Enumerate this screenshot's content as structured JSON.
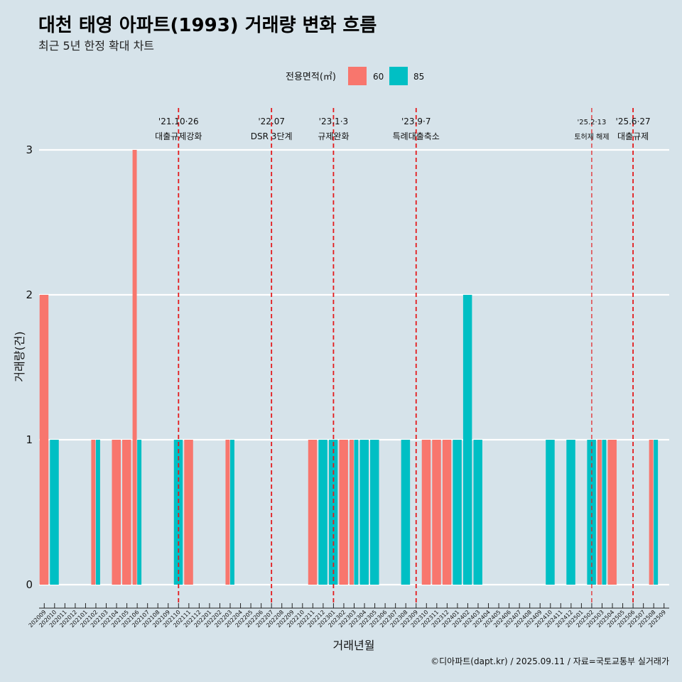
{
  "chart_data": {
    "type": "bar",
    "title": "대천 태영 아파트(1993) 거래량 변화 흐름",
    "subtitle": "최근 5년 한정 확대 차트",
    "xlabel": "거래년월",
    "ylabel": "거래량(건)",
    "ylim": [
      0,
      3
    ],
    "y_ticks": [
      0,
      1,
      2,
      3
    ],
    "legend": {
      "title": "전용면적(㎡)",
      "placement": "top",
      "items": [
        {
          "label": "60",
          "color": "#f8766d"
        },
        {
          "label": "85",
          "color": "#00bfc4"
        }
      ]
    },
    "categories": [
      "202009",
      "202010",
      "202011",
      "202012",
      "202101",
      "202102",
      "202103",
      "202104",
      "202105",
      "202106",
      "202107",
      "202108",
      "202109",
      "202110",
      "202111",
      "202112",
      "202201",
      "202202",
      "202203",
      "202204",
      "202205",
      "202206",
      "202207",
      "202208",
      "202209",
      "202210",
      "202211",
      "202212",
      "202301",
      "202302",
      "202303",
      "202304",
      "202305",
      "202306",
      "202307",
      "202308",
      "202309",
      "202310",
      "202311",
      "202312",
      "202401",
      "202402",
      "202403",
      "202404",
      "202405",
      "202406",
      "202407",
      "202408",
      "202409",
      "202410",
      "202411",
      "202412",
      "202501",
      "202502",
      "202503",
      "202504",
      "202505",
      "202506",
      "202507",
      "202508",
      "202509"
    ],
    "series": [
      {
        "name": "60",
        "color": "#f8766d",
        "points": [
          [
            "202009",
            2
          ],
          [
            "202102",
            1
          ],
          [
            "202104",
            1
          ],
          [
            "202105",
            1
          ],
          [
            "202106",
            3
          ],
          [
            "202111",
            1
          ],
          [
            "202203",
            1
          ],
          [
            "202211",
            1
          ],
          [
            "202302",
            1
          ],
          [
            "202303",
            1
          ],
          [
            "202310",
            1
          ],
          [
            "202311",
            1
          ],
          [
            "202312",
            1
          ],
          [
            "202503",
            1
          ],
          [
            "202504",
            1
          ],
          [
            "202508",
            1
          ]
        ]
      },
      {
        "name": "85",
        "color": "#00bfc4",
        "points": [
          [
            "202010",
            1
          ],
          [
            "202102",
            1
          ],
          [
            "202106",
            1
          ],
          [
            "202110",
            1
          ],
          [
            "202203",
            1
          ],
          [
            "202212",
            1
          ],
          [
            "202301",
            1
          ],
          [
            "202303",
            1
          ],
          [
            "202304",
            1
          ],
          [
            "202305",
            1
          ],
          [
            "202308",
            1
          ],
          [
            "202401",
            1
          ],
          [
            "202402",
            2
          ],
          [
            "202403",
            1
          ],
          [
            "202410",
            1
          ],
          [
            "202412",
            1
          ],
          [
            "202502",
            1
          ],
          [
            "202503",
            1
          ],
          [
            "202508",
            1
          ]
        ]
      }
    ],
    "events": [
      {
        "month": "202110",
        "date": "'21.10·26",
        "label": "대출규제강화"
      },
      {
        "month": "202207",
        "date": "'22.07",
        "label": "DSR 3단계"
      },
      {
        "month": "202301",
        "date": "'23.1·3",
        "label": "규제완화"
      },
      {
        "month": "202309",
        "date": "'23.9·7",
        "label": "특례대출축소"
      },
      {
        "month": "202502",
        "date": "'25.2·13",
        "label": "토허제 해제",
        "small": true
      },
      {
        "month": "202506",
        "date": "'25.6·27",
        "label": "대출규제"
      }
    ],
    "event_line_color": "#e41a1c",
    "grid": true
  },
  "caption": "©디아파트(dapt.kr) / 2025.09.11 / 자료=국토교통부 실거래가"
}
